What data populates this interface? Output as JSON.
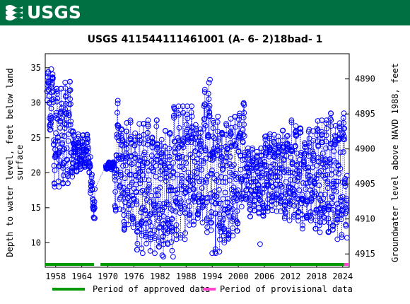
{
  "header": {
    "logo_text": "USGS",
    "brand_color": "#006f41"
  },
  "chart_data": {
    "type": "scatter",
    "title": "USGS 411544111461001  (A- 6- 2)18bad- 1",
    "ylabel_left": [
      "Depth to water level, feet below land",
      "surface"
    ],
    "ylabel_right": "Groundwater level above NAVD 1988, feet",
    "x_ticks": [
      "1958",
      "1964",
      "1970",
      "1976",
      "1982",
      "1988",
      "1994",
      "2000",
      "2006",
      "2012",
      "2018",
      "2024"
    ],
    "x_tick_values": [
      1958,
      1964,
      1970,
      1976,
      1982,
      1988,
      1994,
      2000,
      2006,
      2012,
      2018,
      2024
    ],
    "xlim": [
      1955.6,
      2025.5
    ],
    "y_ticks_left": [
      "10",
      "15",
      "20",
      "25",
      "30",
      "35"
    ],
    "y_tick_values_left": [
      10,
      15,
      20,
      25,
      30,
      35
    ],
    "ylim_left": [
      37.0,
      6.5
    ],
    "y_ticks_right": [
      "4915",
      "4910",
      "4905",
      "4900",
      "4895",
      "4890"
    ],
    "y_tick_values_right": [
      4915,
      4910,
      4905,
      4900,
      4895,
      4890
    ],
    "right_offset": 4923.4,
    "series_color": "#0000ff",
    "marker": "open-circle-dotted-line",
    "segments": [
      {
        "x0": 1956.0,
        "x1": 1957.5,
        "lo": 25.5,
        "hi": 35.0
      },
      {
        "x0": 1957.5,
        "x1": 1960.0,
        "lo": 18.0,
        "hi": 32.0
      },
      {
        "x0": 1960.0,
        "x1": 1962.0,
        "lo": 18.5,
        "hi": 33.0
      },
      {
        "x0": 1962.0,
        "x1": 1966.0,
        "lo": 20.0,
        "hi": 25.5
      },
      {
        "x0": 1966.0,
        "x1": 1967.0,
        "lo": 13.5,
        "hi": 20.0
      },
      {
        "x0": 1969.5,
        "x1": 1971.5,
        "lo": 20.5,
        "hi": 21.5
      },
      {
        "x0": 1971.5,
        "x1": 1973.0,
        "lo": 14.5,
        "hi": 30.5
      },
      {
        "x0": 1973.0,
        "x1": 1976.0,
        "lo": 11.0,
        "hi": 28.0
      },
      {
        "x0": 1976.0,
        "x1": 1979.0,
        "lo": 9.0,
        "hi": 27.0
      },
      {
        "x0": 1979.0,
        "x1": 1982.0,
        "lo": 8.5,
        "hi": 27.5
      },
      {
        "x0": 1982.0,
        "x1": 1985.0,
        "lo": 8.0,
        "hi": 26.0
      },
      {
        "x0": 1985.0,
        "x1": 1988.0,
        "lo": 10.5,
        "hi": 29.5
      },
      {
        "x0": 1988.0,
        "x1": 1990.0,
        "lo": 12.0,
        "hi": 29.5
      },
      {
        "x0": 1990.0,
        "x1": 1992.0,
        "lo": 12.0,
        "hi": 27.5
      },
      {
        "x0": 1992.0,
        "x1": 1994.0,
        "lo": 11.5,
        "hi": 33.5
      },
      {
        "x0": 1994.0,
        "x1": 1996.0,
        "lo": 8.5,
        "hi": 28.5
      },
      {
        "x0": 1996.0,
        "x1": 1998.0,
        "lo": 10.0,
        "hi": 27.0
      },
      {
        "x0": 1998.0,
        "x1": 2000.0,
        "lo": 11.0,
        "hi": 28.0
      },
      {
        "x0": 2000.0,
        "x1": 2002.0,
        "lo": 15.0,
        "hi": 30.0
      },
      {
        "x0": 2002.0,
        "x1": 2006.0,
        "lo": 13.5,
        "hi": 23.5
      },
      {
        "x0": 2006.0,
        "x1": 2010.0,
        "lo": 14.5,
        "hi": 26.0
      },
      {
        "x0": 2010.0,
        "x1": 2014.0,
        "lo": 13.0,
        "hi": 27.5
      },
      {
        "x0": 2014.0,
        "x1": 2018.0,
        "lo": 12.0,
        "hi": 26.5
      },
      {
        "x0": 2018.0,
        "x1": 2021.0,
        "lo": 11.5,
        "hi": 27.5
      },
      {
        "x0": 2021.0,
        "x1": 2025.0,
        "lo": 10.5,
        "hi": 28.5
      }
    ],
    "highlights": [
      {
        "x": 1967.0,
        "y": 13.5
      },
      {
        "x": 1978.0,
        "y": 8.5
      },
      {
        "x": 1982.5,
        "y": 8.2
      },
      {
        "x": 1985.0,
        "y": 8.0
      },
      {
        "x": 1994.0,
        "y": 8.5
      },
      {
        "x": 2005.0,
        "y": 9.8
      },
      {
        "x": 2025.0,
        "y": 10.7
      },
      {
        "x": 1993.5,
        "y": 33.3
      },
      {
        "x": 1957.0,
        "y": 34.8
      }
    ],
    "approved_periods": [
      [
        1955.6,
        1966.8
      ],
      [
        1968.3,
        2024.3
      ]
    ],
    "provisional_periods": [
      [
        2024.3,
        2025.5
      ]
    ],
    "approved_color": "#009900",
    "provisional_color": "#ff44cc",
    "legend": {
      "approved": "Period of approved data",
      "provisional": "Period of provisional data"
    }
  }
}
